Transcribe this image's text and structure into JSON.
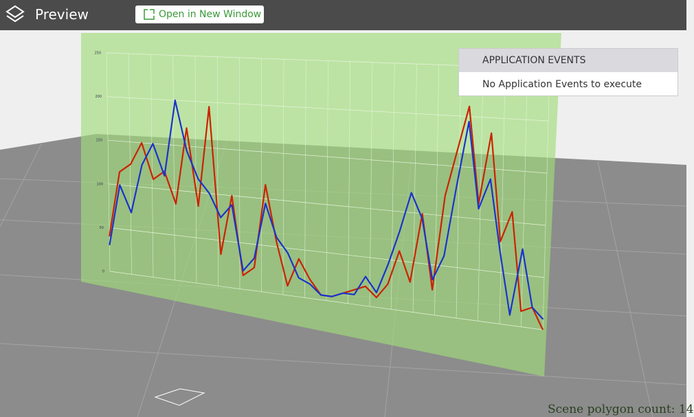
{
  "header": {
    "title": "Preview",
    "button": "Open in New Window"
  },
  "events_panel": {
    "title": "APPLICATION EVENTS",
    "message": "No Application Events to execute"
  },
  "status": "Scene polygon count: 14",
  "chart_data": {
    "type": "line",
    "ylim": [
      0,
      250
    ],
    "yticks": [
      0,
      50,
      100,
      150,
      200,
      250
    ],
    "series": [
      {
        "color": "#cc2200",
        "values": [
          40,
          115,
          125,
          150,
          110,
          120,
          85,
          170,
          85,
          195,
          35,
          100,
          15,
          25,
          115,
          55,
          10,
          40,
          20,
          5,
          5,
          10,
          15,
          20,
          10,
          25,
          60,
          30,
          100,
          25,
          120,
          165,
          210,
          115,
          185,
          80,
          110,
          15,
          20,
          0
        ]
      },
      {
        "color": "#1a33cc",
        "values": [
          30,
          100,
          70,
          125,
          150,
          115,
          200,
          145,
          115,
          100,
          75,
          90,
          20,
          35,
          95,
          60,
          45,
          20,
          15,
          5,
          5,
          10,
          10,
          30,
          15,
          45,
          80,
          120,
          95,
          35,
          60,
          130,
          195,
          110,
          140,
          70,
          10,
          75,
          20,
          10
        ]
      }
    ]
  }
}
